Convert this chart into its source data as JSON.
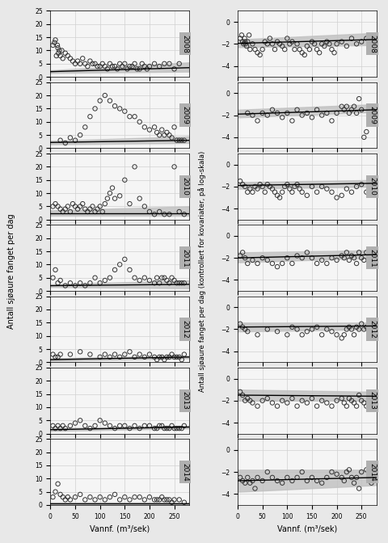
{
  "years": [
    2008,
    2009,
    2010,
    2011,
    2012,
    2013,
    2014
  ],
  "left_ylabel": "Antall sjøaure fanget per dag",
  "right_ylabel": "Antall sjøaure fanget per dag (kontrollert for kovariater, på log-skala)",
  "xlabel": "Vannf. (m³/sek)",
  "left_ylim": [
    0,
    25
  ],
  "left_yticks": [
    0,
    5,
    10,
    15,
    20,
    25
  ],
  "right_ylim": [
    -5,
    1
  ],
  "right_yticks": [
    -4,
    -2,
    0
  ],
  "xlim": [
    0,
    280
  ],
  "xticks": [
    0,
    50,
    100,
    150,
    200,
    250
  ],
  "panel_label_bg": "#b0b0b0",
  "scatter_color": "none",
  "scatter_edgecolor": "#333333",
  "line_color": "#000000",
  "ci_color": "#c0c0c0",
  "background_color": "#f0f0f0",
  "plot_bg": "#ffffff",
  "grid_color": "#cccccc",
  "left_scatter": {
    "2008": {
      "x": [
        5,
        8,
        10,
        12,
        14,
        15,
        16,
        18,
        20,
        23,
        25,
        30,
        35,
        40,
        45,
        50,
        55,
        60,
        65,
        70,
        75,
        80,
        85,
        90,
        95,
        100,
        105,
        110,
        115,
        120,
        125,
        130,
        135,
        140,
        145,
        150,
        155,
        160,
        165,
        170,
        175,
        180,
        185,
        190,
        195,
        200,
        210,
        220,
        230,
        240,
        250,
        260
      ],
      "y": [
        12,
        13,
        14,
        8,
        12,
        11,
        9,
        10,
        8,
        10,
        7,
        9,
        8,
        7,
        6,
        5,
        6,
        5,
        7,
        5,
        4,
        6,
        5,
        5,
        4,
        4,
        5,
        4,
        3,
        5,
        4,
        4,
        3,
        5,
        4,
        5,
        3,
        4,
        4,
        5,
        3,
        3,
        5,
        4,
        3,
        4,
        5,
        4,
        5,
        5,
        3,
        5
      ]
    },
    "2009": {
      "x": [
        20,
        30,
        40,
        50,
        60,
        70,
        80,
        90,
        100,
        110,
        120,
        130,
        140,
        150,
        160,
        170,
        180,
        190,
        200,
        210,
        215,
        220,
        225,
        230,
        235,
        240,
        245,
        250,
        255,
        260,
        265,
        270
      ],
      "y": [
        3,
        2,
        4,
        3,
        5,
        8,
        12,
        15,
        18,
        20,
        18,
        16,
        15,
        14,
        12,
        12,
        10,
        8,
        7,
        8,
        6,
        5,
        7,
        5,
        6,
        5,
        4,
        8,
        3,
        3,
        3,
        3
      ]
    },
    "2010": {
      "x": [
        5,
        10,
        15,
        20,
        25,
        30,
        35,
        40,
        45,
        50,
        55,
        60,
        65,
        70,
        75,
        80,
        85,
        90,
        95,
        100,
        105,
        110,
        115,
        120,
        125,
        130,
        140,
        150,
        160,
        170,
        180,
        190,
        200,
        210,
        220,
        230,
        240,
        250,
        260,
        270
      ],
      "y": [
        5,
        6,
        5,
        4,
        3,
        4,
        5,
        3,
        6,
        5,
        4,
        5,
        6,
        4,
        3,
        4,
        5,
        3,
        4,
        5,
        3,
        6,
        8,
        10,
        12,
        8,
        9,
        15,
        6,
        20,
        8,
        5,
        3,
        2,
        3,
        2,
        2,
        20,
        3,
        2
      ]
    },
    "2011": {
      "x": [
        5,
        10,
        15,
        20,
        30,
        40,
        50,
        60,
        70,
        80,
        90,
        100,
        110,
        120,
        130,
        140,
        150,
        160,
        170,
        180,
        190,
        200,
        210,
        215,
        220,
        225,
        230,
        235,
        240,
        245,
        250,
        255,
        260,
        265,
        270
      ],
      "y": [
        5,
        8,
        3,
        4,
        2,
        3,
        2,
        3,
        2,
        3,
        5,
        3,
        4,
        5,
        8,
        10,
        12,
        8,
        5,
        4,
        5,
        4,
        3,
        5,
        3,
        5,
        5,
        4,
        3,
        5,
        4,
        3,
        3,
        3,
        3
      ]
    },
    "2012": {
      "x": [
        5,
        10,
        15,
        20,
        40,
        60,
        80,
        100,
        110,
        120,
        130,
        140,
        150,
        160,
        170,
        180,
        190,
        200,
        210,
        215,
        220,
        225,
        230,
        235,
        240,
        245,
        250,
        255,
        260,
        265,
        270
      ],
      "y": [
        3,
        2,
        2,
        3,
        3,
        4,
        3,
        2,
        3,
        2,
        3,
        2,
        3,
        4,
        2,
        3,
        2,
        3,
        2,
        1,
        2,
        2,
        1,
        2,
        2,
        3,
        2,
        2,
        2,
        1,
        3
      ]
    },
    "2013": {
      "x": [
        5,
        10,
        15,
        20,
        25,
        30,
        40,
        50,
        60,
        70,
        80,
        90,
        100,
        110,
        120,
        130,
        140,
        150,
        160,
        170,
        180,
        190,
        200,
        210,
        215,
        220,
        225,
        230,
        235,
        240,
        245,
        250,
        255,
        260,
        265,
        270
      ],
      "y": [
        3,
        2,
        3,
        2,
        3,
        2,
        3,
        4,
        5,
        3,
        2,
        3,
        5,
        4,
        3,
        2,
        3,
        3,
        2,
        3,
        2,
        3,
        3,
        2,
        2,
        3,
        3,
        2,
        2,
        2,
        3,
        2,
        2,
        2,
        2,
        3
      ]
    },
    "2014": {
      "x": [
        5,
        10,
        15,
        20,
        25,
        30,
        35,
        40,
        50,
        60,
        70,
        80,
        90,
        100,
        110,
        120,
        130,
        140,
        150,
        160,
        170,
        180,
        190,
        200,
        210,
        215,
        220,
        225,
        230,
        235,
        240,
        245,
        250,
        260,
        270
      ],
      "y": [
        3,
        5,
        8,
        4,
        3,
        2,
        3,
        2,
        3,
        4,
        2,
        3,
        2,
        3,
        2,
        3,
        4,
        2,
        3,
        2,
        3,
        3,
        2,
        3,
        2,
        2,
        2,
        3,
        2,
        2,
        2,
        1,
        2,
        2,
        1
      ]
    }
  },
  "left_lines": {
    "2008": {
      "x": [
        0,
        280
      ],
      "y": [
        2.0,
        3.5
      ],
      "ci_low": [
        1.5,
        2.0
      ],
      "ci_high": [
        2.5,
        5.5
      ]
    },
    "2009": {
      "x": [
        0,
        280
      ],
      "y": [
        2.2,
        3.0
      ],
      "ci_low": [
        1.5,
        2.0
      ],
      "ci_high": [
        2.8,
        4.5
      ]
    },
    "2010": {
      "x": [
        0,
        280
      ],
      "y": [
        2.5,
        2.5
      ],
      "ci_low": [
        1.5,
        1.5
      ],
      "ci_high": [
        3.5,
        5.0
      ]
    },
    "2011": {
      "x": [
        0,
        280
      ],
      "y": [
        2.0,
        2.5
      ],
      "ci_low": [
        1.5,
        1.0
      ],
      "ci_high": [
        2.5,
        4.0
      ]
    },
    "2012": {
      "x": [
        0,
        280
      ],
      "y": [
        1.0,
        2.0
      ],
      "ci_low": [
        0.5,
        1.5
      ],
      "ci_high": [
        1.5,
        2.5
      ]
    },
    "2013": {
      "x": [
        0,
        280
      ],
      "y": [
        1.5,
        2.5
      ],
      "ci_low": [
        1.0,
        2.0
      ],
      "ci_high": [
        2.0,
        3.0
      ]
    },
    "2014": {
      "x": [
        0,
        280
      ],
      "y": [
        0.5,
        0.5
      ],
      "ci_low": [
        0.2,
        0.2
      ],
      "ci_high": [
        1.0,
        1.0
      ]
    }
  },
  "right_scatter": {
    "2008": {
      "x": [
        5,
        8,
        10,
        12,
        14,
        15,
        16,
        18,
        20,
        23,
        25,
        30,
        35,
        40,
        45,
        50,
        55,
        60,
        65,
        70,
        75,
        80,
        85,
        90,
        95,
        100,
        105,
        110,
        115,
        120,
        125,
        130,
        135,
        140,
        145,
        150,
        155,
        160,
        165,
        170,
        175,
        180,
        185,
        190,
        195,
        200,
        210,
        220,
        230,
        240,
        250,
        260
      ],
      "y": [
        -1.5,
        -1.2,
        -1.8,
        -2.0,
        -1.5,
        -1.8,
        -2.0,
        -2.2,
        -1.8,
        -1.2,
        -2.5,
        -2.0,
        -2.5,
        -2.8,
        -3.0,
        -2.5,
        -1.8,
        -2.0,
        -1.5,
        -2.0,
        -2.5,
        -1.8,
        -2.0,
        -2.2,
        -2.5,
        -1.5,
        -2.0,
        -1.8,
        -2.5,
        -2.0,
        -2.5,
        -2.8,
        -3.0,
        -2.2,
        -2.5,
        -1.8,
        -2.0,
        -2.5,
        -2.8,
        -2.0,
        -2.2,
        -1.8,
        -2.0,
        -2.5,
        -2.8,
        -2.0,
        -1.8,
        -2.2,
        -1.5,
        -2.0,
        -1.8,
        -1.5
      ]
    },
    "2009": {
      "x": [
        20,
        30,
        40,
        50,
        60,
        70,
        80,
        90,
        100,
        110,
        120,
        130,
        140,
        150,
        160,
        170,
        180,
        190,
        200,
        210,
        215,
        220,
        225,
        230,
        235,
        240,
        245,
        250,
        255,
        260,
        265,
        270
      ],
      "y": [
        -1.8,
        -2.0,
        -2.5,
        -1.8,
        -2.0,
        -1.5,
        -1.8,
        -2.2,
        -1.8,
        -2.5,
        -1.5,
        -2.0,
        -1.8,
        -2.2,
        -1.5,
        -2.0,
        -1.8,
        -2.5,
        -1.8,
        -1.2,
        -1.5,
        -1.2,
        -1.8,
        -1.5,
        -1.2,
        -1.8,
        -0.5,
        -1.5,
        -4.0,
        -3.5,
        -1.2,
        -1.8
      ]
    },
    "2010": {
      "x": [
        5,
        10,
        15,
        20,
        25,
        30,
        35,
        40,
        45,
        50,
        55,
        60,
        65,
        70,
        75,
        80,
        85,
        90,
        95,
        100,
        105,
        110,
        115,
        120,
        125,
        130,
        140,
        150,
        160,
        170,
        180,
        190,
        200,
        210,
        220,
        230,
        240,
        250,
        260,
        270
      ],
      "y": [
        -1.5,
        -1.8,
        -2.0,
        -2.5,
        -2.2,
        -2.5,
        -2.0,
        -2.2,
        -1.8,
        -2.0,
        -2.5,
        -1.8,
        -2.0,
        -2.2,
        -2.5,
        -2.8,
        -3.0,
        -2.5,
        -2.0,
        -1.8,
        -2.2,
        -2.5,
        -2.0,
        -1.8,
        -2.2,
        -2.5,
        -2.8,
        -2.0,
        -2.5,
        -2.0,
        -2.2,
        -2.5,
        -3.0,
        -2.8,
        -2.2,
        -2.5,
        -2.0,
        -1.8,
        -2.5,
        -1.5
      ]
    },
    "2011": {
      "x": [
        5,
        10,
        15,
        20,
        30,
        40,
        50,
        60,
        70,
        80,
        90,
        100,
        110,
        120,
        130,
        140,
        150,
        160,
        170,
        180,
        190,
        200,
        210,
        215,
        220,
        225,
        230,
        235,
        240,
        245,
        250,
        255,
        260,
        265,
        270
      ],
      "y": [
        -1.8,
        -1.5,
        -2.0,
        -2.5,
        -2.2,
        -2.5,
        -2.0,
        -2.2,
        -2.5,
        -2.8,
        -2.5,
        -2.0,
        -2.5,
        -1.8,
        -2.0,
        -1.5,
        -2.0,
        -2.5,
        -2.2,
        -2.5,
        -2.0,
        -2.2,
        -1.8,
        -2.0,
        -1.5,
        -2.2,
        -1.8,
        -2.0,
        -2.5,
        -1.5,
        -2.0,
        -2.2,
        -1.5,
        -2.0,
        -1.5
      ]
    },
    "2012": {
      "x": [
        5,
        10,
        15,
        20,
        40,
        60,
        80,
        100,
        110,
        120,
        130,
        140,
        150,
        160,
        170,
        180,
        190,
        200,
        210,
        215,
        220,
        225,
        230,
        235,
        240,
        245,
        250,
        255,
        260,
        265,
        270
      ],
      "y": [
        -1.5,
        -1.8,
        -2.0,
        -2.2,
        -2.5,
        -2.0,
        -2.2,
        -2.5,
        -1.8,
        -2.0,
        -2.5,
        -2.2,
        -2.0,
        -1.8,
        -2.5,
        -2.0,
        -2.2,
        -2.5,
        -2.8,
        -2.5,
        -2.0,
        -1.8,
        -2.0,
        -2.5,
        -1.8,
        -2.0,
        -1.5,
        -2.0,
        -1.8,
        -2.5,
        -1.5
      ]
    },
    "2013": {
      "x": [
        5,
        10,
        15,
        20,
        25,
        30,
        40,
        50,
        60,
        70,
        80,
        90,
        100,
        110,
        120,
        130,
        140,
        150,
        160,
        170,
        180,
        190,
        200,
        210,
        215,
        220,
        225,
        230,
        235,
        240,
        245,
        250,
        255,
        260,
        265,
        270
      ],
      "y": [
        -1.2,
        -1.5,
        -2.0,
        -1.8,
        -2.0,
        -2.2,
        -2.5,
        -2.0,
        -1.8,
        -2.2,
        -2.5,
        -2.0,
        -2.2,
        -1.8,
        -2.5,
        -2.0,
        -2.2,
        -1.8,
        -2.5,
        -2.0,
        -2.2,
        -2.5,
        -2.0,
        -1.8,
        -2.2,
        -2.5,
        -1.8,
        -2.0,
        -2.2,
        -2.5,
        -1.5,
        -2.0,
        -2.2,
        -2.5,
        -2.0,
        -1.8
      ]
    },
    "2014": {
      "x": [
        5,
        10,
        15,
        20,
        25,
        30,
        35,
        40,
        50,
        60,
        70,
        80,
        90,
        100,
        110,
        120,
        130,
        140,
        150,
        160,
        170,
        180,
        190,
        200,
        210,
        215,
        220,
        225,
        230,
        235,
        240,
        245,
        250,
        260,
        270
      ],
      "y": [
        -2.5,
        -2.8,
        -3.0,
        -2.5,
        -3.0,
        -2.8,
        -3.5,
        -2.5,
        -2.8,
        -2.0,
        -2.5,
        -2.8,
        -3.0,
        -2.5,
        -2.8,
        -2.5,
        -2.0,
        -2.8,
        -2.5,
        -2.8,
        -3.0,
        -2.5,
        -2.0,
        -2.2,
        -2.5,
        -2.8,
        -2.0,
        -1.8,
        -2.5,
        -3.0,
        -2.5,
        -3.5,
        -2.0,
        -1.8,
        -3.0
      ]
    }
  },
  "right_lines": {
    "2008": {
      "x": [
        0,
        280
      ],
      "y": [
        -1.95,
        -1.6
      ],
      "ci_low": [
        -2.3,
        -2.1
      ],
      "ci_high": [
        -1.6,
        -1.0
      ]
    },
    "2009": {
      "x": [
        0,
        280
      ],
      "y": [
        -1.9,
        -1.5
      ],
      "ci_low": [
        -2.2,
        -1.7
      ],
      "ci_high": [
        -1.5,
        -1.0
      ]
    },
    "2010": {
      "x": [
        0,
        280
      ],
      "y": [
        -1.9,
        -1.7
      ],
      "ci_low": [
        -2.2,
        -2.0
      ],
      "ci_high": [
        -1.6,
        -1.4
      ]
    },
    "2011": {
      "x": [
        0,
        280
      ],
      "y": [
        -2.0,
        -1.7
      ],
      "ci_low": [
        -2.4,
        -2.0
      ],
      "ci_high": [
        -1.5,
        -1.3
      ]
    },
    "2012": {
      "x": [
        0,
        280
      ],
      "y": [
        -1.8,
        -1.7
      ],
      "ci_low": [
        -2.2,
        -2.0
      ],
      "ci_high": [
        -1.4,
        -1.4
      ]
    },
    "2013": {
      "x": [
        0,
        280
      ],
      "y": [
        -1.5,
        -1.6
      ],
      "ci_low": [
        -2.0,
        -2.0
      ],
      "ci_high": [
        -1.0,
        -1.2
      ]
    },
    "2014": {
      "x": [
        0,
        280
      ],
      "y": [
        -2.8,
        -2.5
      ],
      "ci_low": [
        -3.8,
        -3.2
      ],
      "ci_high": [
        -1.8,
        -1.8
      ]
    }
  }
}
